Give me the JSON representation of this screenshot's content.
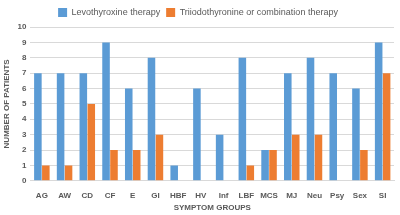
{
  "chart_data": {
    "type": "bar",
    "categories": [
      "AG",
      "AW",
      "CD",
      "CF",
      "E",
      "GI",
      "HBF",
      "HV",
      "Inf",
      "LBF",
      "MCS",
      "MJ",
      "Neu",
      "Psy",
      "Sex",
      "SI"
    ],
    "series": [
      {
        "name": "Levothyroxine therapy",
        "color": "#5b9bd5",
        "values": [
          7,
          7,
          7,
          9,
          6,
          8,
          1,
          6,
          3,
          8,
          2,
          7,
          8,
          7,
          6,
          9
        ]
      },
      {
        "name": "Triiodothyronine or combination therapy",
        "color": "#ed7d31",
        "values": [
          1,
          1,
          5,
          2,
          2,
          3,
          0,
          0,
          0,
          1,
          2,
          3,
          3,
          0,
          2,
          7
        ]
      }
    ],
    "x_label": "SYMPTOM GROUPS",
    "y_label": "NUMBER OF PATIENTS",
    "ylim": [
      0,
      10
    ],
    "yticks": [
      0,
      1,
      2,
      3,
      4,
      5,
      6,
      7,
      8,
      9,
      10
    ],
    "grid": true,
    "legend": "top"
  }
}
